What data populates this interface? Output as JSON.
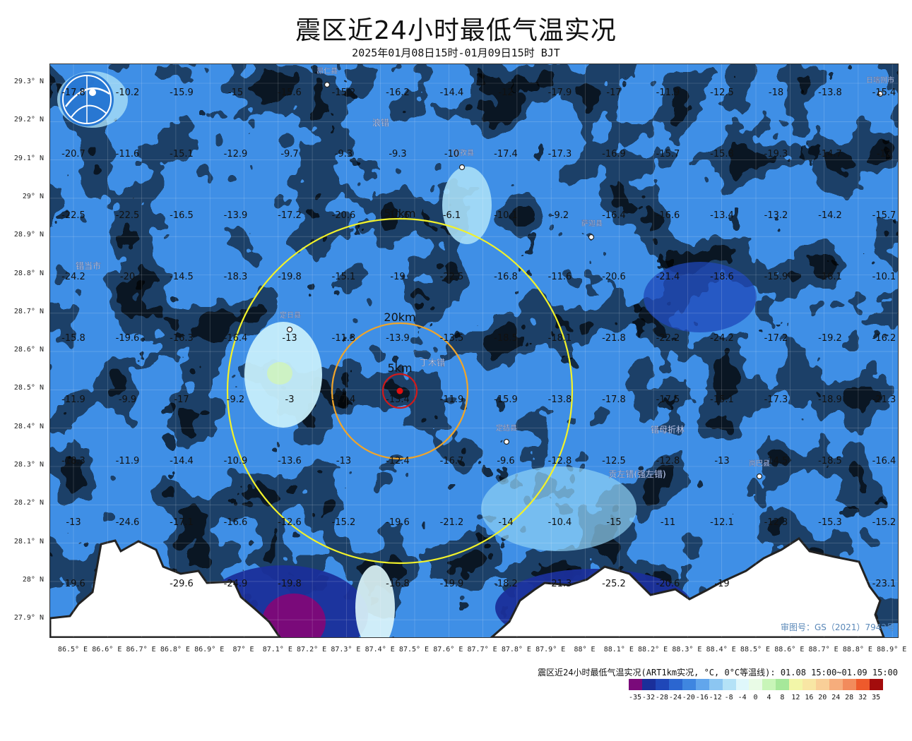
{
  "title": "震区近24小时最低气温实况",
  "subtitle": "2025年01月08日15时-01月09日15时 BJT",
  "lat_labels": [
    "29.3° N",
    "29.2° N",
    "29.1° N",
    "29° N",
    "28.9° N",
    "28.8° N",
    "28.7° N",
    "28.6° N",
    "28.5° N",
    "28.4° N",
    "28.3° N",
    "28.2° N",
    "28.1° N",
    "28° N",
    "27.9° N"
  ],
  "lon_labels": [
    "86.5° E",
    "86.6° E",
    "86.7° E",
    "86.8° E",
    "86.9° E",
    "87° E",
    "87.1° E",
    "87.2° E",
    "87.3° E",
    "87.4° E",
    "87.5° E",
    "87.6° E",
    "87.7° E",
    "87.8° E",
    "87.9° E",
    "88° E",
    "88.1° E",
    "88.2° E",
    "88.3° E",
    "88.4° E",
    "88.5° E",
    "88.6° E",
    "88.7° E",
    "88.8° E",
    "88.9° E"
  ],
  "grid_rows": [
    [
      "-17.8",
      "-10.2",
      "-15.9",
      "-15",
      "-15.6",
      "-15.2",
      "-16.2",
      "-14.4",
      "-12",
      "-17.9",
      "-17",
      "-11.9",
      "-12.5",
      "-18",
      "-13.8",
      "-15.4"
    ],
    [
      "-20.7",
      "-11.6",
      "-15.1",
      "-12.9",
      "-9.7",
      "-9.3",
      "-9.3",
      "-10",
      "-17.4",
      "-17.3",
      "-16.9",
      "-15.7",
      "-15.8",
      "-19.3",
      "-14.7",
      "-12"
    ],
    [
      "-22.5",
      "-22.5",
      "-16.5",
      "-13.9",
      "-17.2",
      "-20.6",
      "-10.6",
      "-6.1",
      "-10.1",
      "-9.2",
      "-16.4",
      "-16.6",
      "-13.4",
      "-13.2",
      "-14.2",
      "-15.7"
    ],
    [
      "-24.2",
      "-20",
      "-14.5",
      "-18.3",
      "-19.8",
      "-15.1",
      "-19",
      "-22.5",
      "-16.8",
      "-11.6",
      "-20.6",
      "-21.4",
      "-18.6",
      "-15.9",
      "-16.1",
      "-10.1"
    ],
    [
      "-15.8",
      "-19.6",
      "-16.3",
      "-16.4",
      "-13",
      "-11.3",
      "-13.9",
      "-13.5",
      "-18.5",
      "-18.1",
      "-21.8",
      "-22.2",
      "-24.2",
      "-17.2",
      "-19.2",
      "-16.2"
    ],
    [
      "-11.9",
      "-9.9",
      "-17",
      "-9.2",
      "-3",
      "-17.4",
      "-13.4",
      "-11.9",
      "-15.9",
      "-13.8",
      "-17.8",
      "-17.5",
      "-15.1",
      "-17.3",
      "-18.9",
      "-21.3"
    ],
    [
      "-18.3",
      "-11.9",
      "-14.4",
      "-10.9",
      "-13.6",
      "-13",
      "-12.4",
      "-16.7",
      "-9.6",
      "-12.8",
      "-12.5",
      "-12.8",
      "-13",
      "-14.5",
      "-18.5",
      "-16.4"
    ],
    [
      "-13",
      "-24.6",
      "-17.1",
      "-16.6",
      "-12.6",
      "-15.2",
      "-19.6",
      "-21.2",
      "-14",
      "-10.4",
      "-15",
      "-11",
      "-12.1",
      "-12.3",
      "-15.3",
      "-15.2"
    ],
    [
      "-19.6",
      "",
      "-29.6",
      "-24.9",
      "-19.8",
      "",
      "-16.8",
      "-19.9",
      "-18.2",
      "-21.3",
      "-25.2",
      "-20.6",
      "-19",
      "",
      "",
      "-23.1"
    ]
  ],
  "places": [
    "昂仁县",
    "浪错",
    "拉孜县",
    "萨迦县",
    "错当市",
    "定日县",
    "丁木错",
    "定结县",
    "错母折林",
    "贡左错(强左错)",
    "岗巴县",
    "日喀则市"
  ],
  "rings": [
    "50km",
    "20km",
    "5km"
  ],
  "approval": "审图号：GS（2021）7942号",
  "legend_title": "震区近24小时最低气温实况(ART1km实况, °C, 0°C等温线): 01.08 15:00~01.09 15:00",
  "legend_colors": [
    "#7a0a7a",
    "#1a2f9a",
    "#1f47b8",
    "#2b66d0",
    "#3f86e0",
    "#62a6ec",
    "#8cc6f2",
    "#b4e2f7",
    "#dff7fb",
    "#e9fbe6",
    "#c8f5b8",
    "#a6e89a",
    "#f2f6a8",
    "#f8e6a4",
    "#f9cf98",
    "#f6ad7c",
    "#f28b5c",
    "#ee5a2c",
    "#a30c0c"
  ],
  "legend_ticks": [
    "-35",
    "-32",
    "-28",
    "-24",
    "-20",
    "-16",
    "-12",
    "-8",
    "-4",
    "0",
    "4",
    "8",
    "12",
    "16",
    "20",
    "24",
    "28",
    "32",
    "35"
  ]
}
